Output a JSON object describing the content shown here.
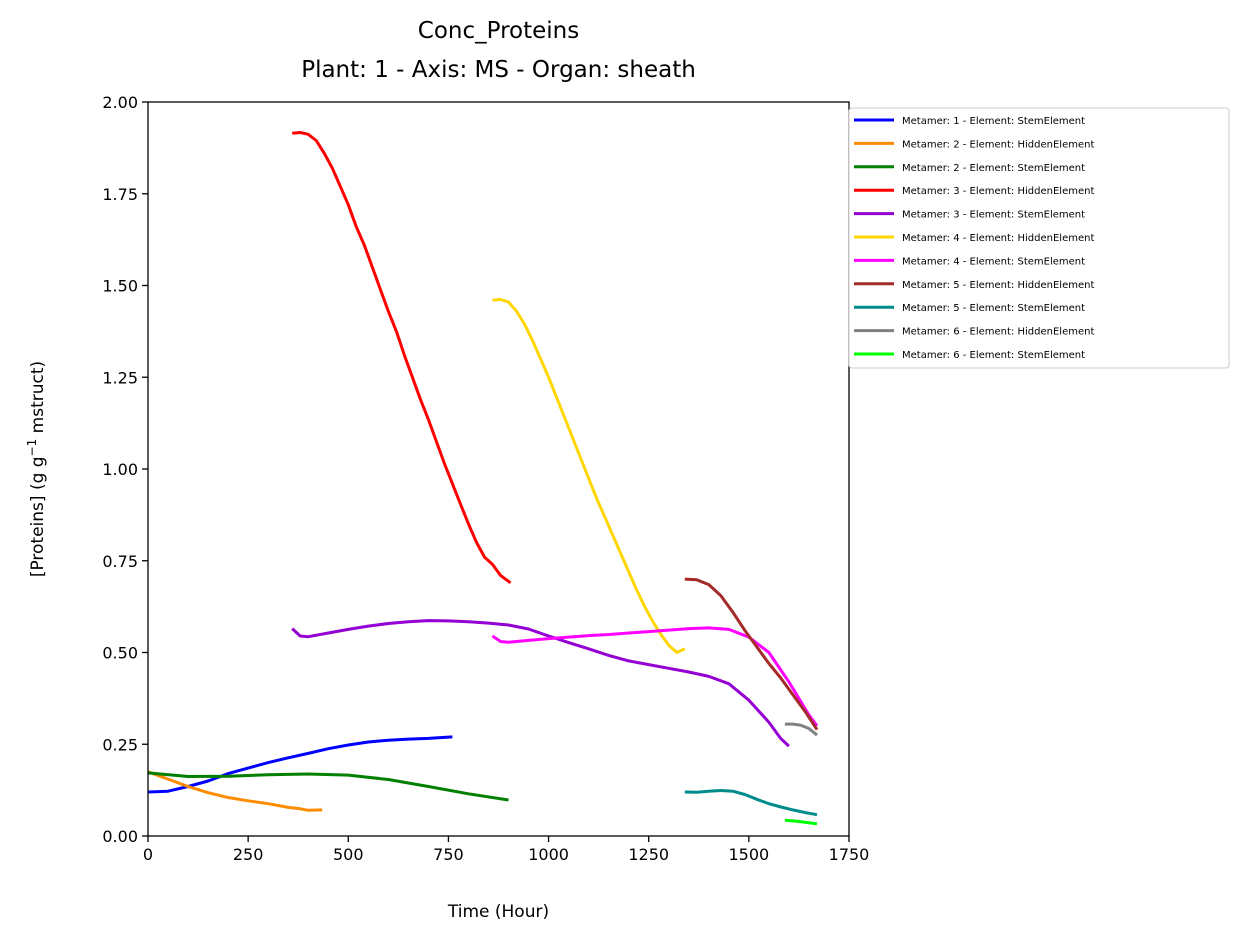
{
  "chart_data": {
    "type": "line",
    "title": "Conc_Proteins",
    "subtitle": "Plant: 1 - Axis: MS - Organ: sheath",
    "xlabel": "Time (Hour)",
    "ylabel_parts": {
      "before": "[Proteins] (g g",
      "sup": "−1",
      "after": " mstruct)"
    },
    "xlim": [
      0,
      1750
    ],
    "ylim": [
      0,
      2.0
    ],
    "xticks": [
      "0",
      "250",
      "500",
      "750",
      "1000",
      "1250",
      "1500",
      "1750"
    ],
    "yticks": [
      "0.00",
      "0.25",
      "0.50",
      "0.75",
      "1.00",
      "1.25",
      "1.50",
      "1.75",
      "2.00"
    ],
    "grid": false,
    "legend_position": "outside-right",
    "series": [
      {
        "name": "Metamer: 1 - Element: StemElement",
        "color": "#0000ff",
        "points": [
          [
            0,
            0.12
          ],
          [
            50,
            0.122
          ],
          [
            100,
            0.135
          ],
          [
            150,
            0.15
          ],
          [
            200,
            0.17
          ],
          [
            250,
            0.185
          ],
          [
            300,
            0.2
          ],
          [
            350,
            0.213
          ],
          [
            400,
            0.225
          ],
          [
            450,
            0.238
          ],
          [
            500,
            0.248
          ],
          [
            550,
            0.256
          ],
          [
            600,
            0.261
          ],
          [
            650,
            0.264
          ],
          [
            700,
            0.266
          ],
          [
            760,
            0.27
          ]
        ]
      },
      {
        "name": "Metamer: 2 - Element: HiddenElement",
        "color": "#ff8c00",
        "points": [
          [
            0,
            0.175
          ],
          [
            50,
            0.155
          ],
          [
            100,
            0.135
          ],
          [
            150,
            0.118
          ],
          [
            200,
            0.105
          ],
          [
            250,
            0.096
          ],
          [
            300,
            0.088
          ],
          [
            350,
            0.078
          ],
          [
            380,
            0.074
          ],
          [
            400,
            0.07
          ],
          [
            435,
            0.071
          ]
        ]
      },
      {
        "name": "Metamer: 2 - Element: StemElement",
        "color": "#008000",
        "points": [
          [
            0,
            0.172
          ],
          [
            100,
            0.162
          ],
          [
            200,
            0.163
          ],
          [
            300,
            0.167
          ],
          [
            400,
            0.169
          ],
          [
            500,
            0.166
          ],
          [
            600,
            0.154
          ],
          [
            700,
            0.135
          ],
          [
            800,
            0.115
          ],
          [
            900,
            0.098
          ]
        ]
      },
      {
        "name": "Metamer: 3 - Element: HiddenElement",
        "color": "#ff0000",
        "points": [
          [
            360,
            1.915
          ],
          [
            380,
            1.917
          ],
          [
            400,
            1.912
          ],
          [
            420,
            1.895
          ],
          [
            440,
            1.86
          ],
          [
            460,
            1.82
          ],
          [
            480,
            1.77
          ],
          [
            500,
            1.72
          ],
          [
            520,
            1.66
          ],
          [
            540,
            1.61
          ],
          [
            560,
            1.55
          ],
          [
            580,
            1.49
          ],
          [
            600,
            1.43
          ],
          [
            620,
            1.375
          ],
          [
            640,
            1.31
          ],
          [
            660,
            1.25
          ],
          [
            680,
            1.19
          ],
          [
            700,
            1.135
          ],
          [
            720,
            1.075
          ],
          [
            740,
            1.015
          ],
          [
            760,
            0.96
          ],
          [
            780,
            0.905
          ],
          [
            800,
            0.85
          ],
          [
            820,
            0.8
          ],
          [
            840,
            0.76
          ],
          [
            860,
            0.74
          ],
          [
            880,
            0.71
          ],
          [
            905,
            0.69
          ]
        ]
      },
      {
        "name": "Metamer: 3 - Element: StemElement",
        "color": "#9400d3",
        "points": [
          [
            360,
            0.565
          ],
          [
            380,
            0.545
          ],
          [
            400,
            0.543
          ],
          [
            450,
            0.553
          ],
          [
            500,
            0.563
          ],
          [
            550,
            0.572
          ],
          [
            600,
            0.579
          ],
          [
            650,
            0.584
          ],
          [
            700,
            0.587
          ],
          [
            750,
            0.586
          ],
          [
            800,
            0.584
          ],
          [
            850,
            0.58
          ],
          [
            900,
            0.575
          ],
          [
            950,
            0.564
          ],
          [
            1000,
            0.545
          ],
          [
            1050,
            0.527
          ],
          [
            1100,
            0.51
          ],
          [
            1150,
            0.492
          ],
          [
            1200,
            0.477
          ],
          [
            1250,
            0.467
          ],
          [
            1300,
            0.457
          ],
          [
            1350,
            0.447
          ],
          [
            1400,
            0.435
          ],
          [
            1450,
            0.415
          ],
          [
            1500,
            0.37
          ],
          [
            1550,
            0.31
          ],
          [
            1580,
            0.265
          ],
          [
            1600,
            0.245
          ]
        ]
      },
      {
        "name": "Metamer: 4 - Element: HiddenElement",
        "color": "#ffd700",
        "points": [
          [
            860,
            1.46
          ],
          [
            880,
            1.462
          ],
          [
            900,
            1.455
          ],
          [
            920,
            1.43
          ],
          [
            940,
            1.395
          ],
          [
            960,
            1.35
          ],
          [
            980,
            1.3
          ],
          [
            1000,
            1.25
          ],
          [
            1020,
            1.195
          ],
          [
            1040,
            1.14
          ],
          [
            1060,
            1.085
          ],
          [
            1080,
            1.03
          ],
          [
            1100,
            0.975
          ],
          [
            1120,
            0.92
          ],
          [
            1140,
            0.87
          ],
          [
            1160,
            0.82
          ],
          [
            1180,
            0.77
          ],
          [
            1200,
            0.72
          ],
          [
            1220,
            0.67
          ],
          [
            1240,
            0.625
          ],
          [
            1260,
            0.585
          ],
          [
            1280,
            0.55
          ],
          [
            1300,
            0.52
          ],
          [
            1320,
            0.5
          ],
          [
            1340,
            0.51
          ]
        ]
      },
      {
        "name": "Metamer: 4 - Element: StemElement",
        "color": "#ff00ff",
        "points": [
          [
            860,
            0.545
          ],
          [
            880,
            0.53
          ],
          [
            900,
            0.528
          ],
          [
            950,
            0.533
          ],
          [
            1000,
            0.538
          ],
          [
            1050,
            0.542
          ],
          [
            1100,
            0.546
          ],
          [
            1150,
            0.549
          ],
          [
            1200,
            0.553
          ],
          [
            1250,
            0.557
          ],
          [
            1300,
            0.561
          ],
          [
            1350,
            0.565
          ],
          [
            1400,
            0.567
          ],
          [
            1450,
            0.563
          ],
          [
            1500,
            0.542
          ],
          [
            1550,
            0.5
          ],
          [
            1600,
            0.42
          ],
          [
            1650,
            0.33
          ],
          [
            1670,
            0.3
          ]
        ]
      },
      {
        "name": "Metamer: 5 - Element: HiddenElement",
        "color": "#a52a2a",
        "points": [
          [
            1340,
            0.7
          ],
          [
            1370,
            0.698
          ],
          [
            1400,
            0.685
          ],
          [
            1430,
            0.655
          ],
          [
            1460,
            0.61
          ],
          [
            1490,
            0.56
          ],
          [
            1520,
            0.515
          ],
          [
            1550,
            0.47
          ],
          [
            1580,
            0.43
          ],
          [
            1610,
            0.385
          ],
          [
            1640,
            0.34
          ],
          [
            1670,
            0.29
          ]
        ]
      },
      {
        "name": "Metamer: 5 - Element: StemElement",
        "color": "#008b8b",
        "points": [
          [
            1340,
            0.12
          ],
          [
            1370,
            0.119
          ],
          [
            1400,
            0.122
          ],
          [
            1430,
            0.124
          ],
          [
            1460,
            0.122
          ],
          [
            1490,
            0.113
          ],
          [
            1520,
            0.1
          ],
          [
            1550,
            0.088
          ],
          [
            1580,
            0.079
          ],
          [
            1610,
            0.071
          ],
          [
            1640,
            0.064
          ],
          [
            1670,
            0.058
          ]
        ]
      },
      {
        "name": "Metamer: 6 - Element: HiddenElement",
        "color": "#808080",
        "points": [
          [
            1590,
            0.305
          ],
          [
            1610,
            0.305
          ],
          [
            1630,
            0.302
          ],
          [
            1650,
            0.293
          ],
          [
            1670,
            0.275
          ]
        ]
      },
      {
        "name": "Metamer: 6 - Element: StemElement",
        "color": "#00ff00",
        "points": [
          [
            1590,
            0.043
          ],
          [
            1620,
            0.04
          ],
          [
            1650,
            0.036
          ],
          [
            1670,
            0.033
          ]
        ]
      }
    ]
  }
}
